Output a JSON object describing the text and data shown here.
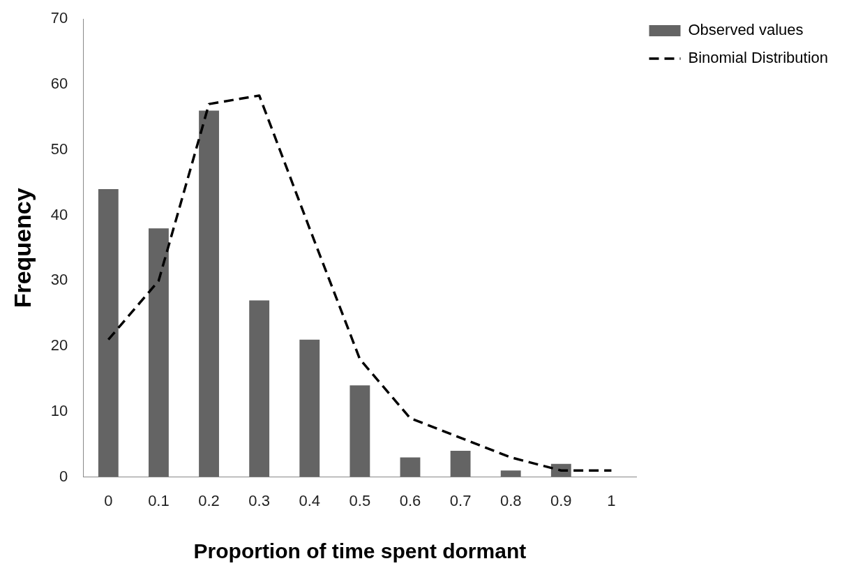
{
  "chart_data": {
    "type": "bar",
    "xlabel": "Proportion of time spent dormant",
    "ylabel": "Frequency",
    "categories": [
      "0",
      "0.1",
      "0.2",
      "0.3",
      "0.4",
      "0.5",
      "0.6",
      "0.7",
      "0.8",
      "0.9",
      "1"
    ],
    "series": [
      {
        "name": "Observed values",
        "color": "#646464",
        "values": [
          44,
          38,
          56,
          27,
          21,
          14,
          3,
          4,
          1,
          2,
          0
        ]
      },
      {
        "name": "Binomial Distribution",
        "type": "line",
        "color": "#000000",
        "line_style": "dashed",
        "marker": "none",
        "values": [
          21,
          30,
          57,
          58.3,
          38,
          18,
          9,
          6,
          3,
          1,
          1
        ]
      }
    ],
    "ylim": [
      0,
      70
    ],
    "yticks": [
      0,
      10,
      20,
      30,
      40,
      50,
      60,
      70
    ],
    "grid": false,
    "legend": "top right"
  }
}
